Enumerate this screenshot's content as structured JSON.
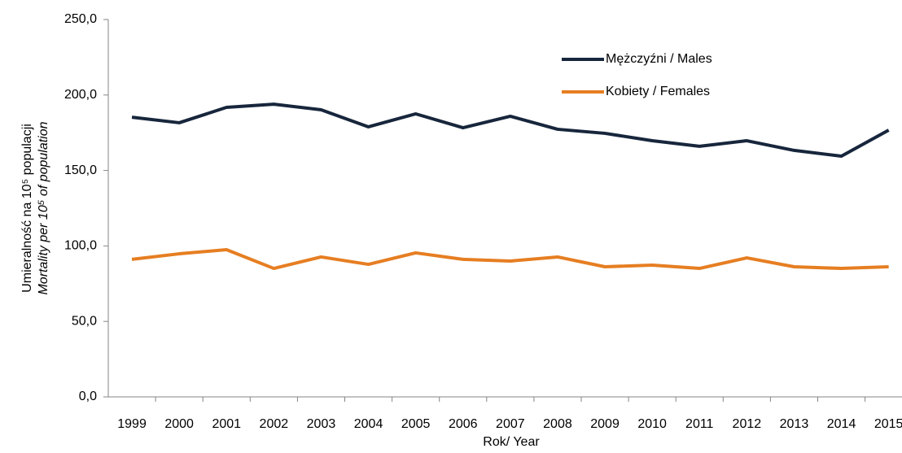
{
  "chart_data": {
    "type": "line",
    "y_label": "Umieralność na 10⁵ populacji",
    "y_label_2": "Mortality per 10⁵ of population",
    "x_label": "Rok/ Year",
    "categories": [
      "1999",
      "2000",
      "2001",
      "2002",
      "2003",
      "2004",
      "2005",
      "2006",
      "2007",
      "2008",
      "2009",
      "2010",
      "2011",
      "2012",
      "2013",
      "2014",
      "2015"
    ],
    "series": [
      {
        "name": "Mężczyźni / Males",
        "color": "#17263c",
        "values": [
          185.3,
          181.6,
          191.8,
          193.9,
          190.2,
          178.9,
          187.5,
          178.3,
          185.9,
          177.3,
          174.6,
          169.7,
          166.0,
          169.7,
          163.3,
          159.5,
          176.7
        ]
      },
      {
        "name": "Kobiety / Females",
        "color": "#e67e22",
        "values": [
          91.1,
          94.8,
          97.5,
          85.1,
          92.7,
          87.8,
          95.4,
          91.1,
          90.0,
          92.7,
          86.2,
          87.3,
          85.1,
          92.1,
          86.2,
          85.1,
          86.2
        ]
      }
    ],
    "ylim": [
      0,
      250
    ],
    "yticks": [
      {
        "value": 0,
        "label": "0,0"
      },
      {
        "value": 50,
        "label": "50,0"
      },
      {
        "value": 100,
        "label": "100,0"
      },
      {
        "value": 150,
        "label": "150,0"
      },
      {
        "value": 200,
        "label": "200,0"
      },
      {
        "value": 250,
        "label": "250,0"
      }
    ],
    "legend": "top-right"
  }
}
